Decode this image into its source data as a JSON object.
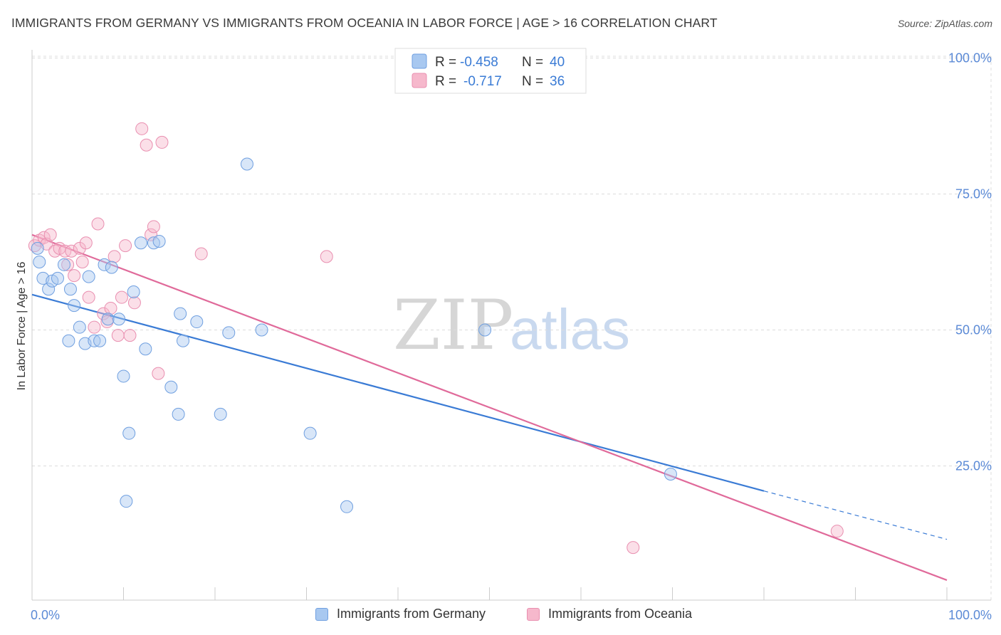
{
  "header": {
    "title": "IMMIGRANTS FROM GERMANY VS IMMIGRANTS FROM OCEANIA IN LABOR FORCE | AGE > 16 CORRELATION CHART",
    "source": "Source: ZipAtlas.com"
  },
  "watermark": {
    "zip": "ZIP",
    "atlas": "atlas"
  },
  "legend": {
    "germany": {
      "r_label": "R =",
      "r_value": "-0.458",
      "n_label": "N =",
      "n_value": "40",
      "color": "#a8c8f0"
    },
    "oceania": {
      "r_label": "R =",
      "r_value": "-0.717",
      "n_label": "N =",
      "n_value": "36",
      "color": "#f6b8cc"
    }
  },
  "bottom_legend": {
    "germany_label": "Immigrants from Germany",
    "oceania_label": "Immigrants from Oceania"
  },
  "chart_data": {
    "type": "scatter",
    "title": "IMMIGRANTS FROM GERMANY VS IMMIGRANTS FROM OCEANIA IN LABOR FORCE | AGE > 16 CORRELATION CHART",
    "xlabel": "",
    "ylabel": "In Labor Force | Age > 16",
    "xlim": [
      0,
      100
    ],
    "ylim": [
      0,
      105
    ],
    "x_tick_labels": [
      "0.0%",
      "100.0%"
    ],
    "y_ticks": [
      25,
      50,
      75,
      100
    ],
    "y_tick_labels": [
      "25.0%",
      "50.0%",
      "75.0%",
      "100.0%"
    ],
    "grid": true,
    "series": [
      {
        "name": "Immigrants from Germany",
        "color": "#a8c8f0",
        "stroke": "#6f9fe0",
        "line_color": "#3a7bd5",
        "points": [
          [
            0.6,
            65.0
          ],
          [
            0.8,
            62.5
          ],
          [
            1.2,
            59.5
          ],
          [
            1.8,
            57.5
          ],
          [
            2.2,
            59.0
          ],
          [
            2.8,
            59.5
          ],
          [
            3.5,
            62.0
          ],
          [
            4.0,
            48.0
          ],
          [
            4.2,
            57.5
          ],
          [
            4.6,
            54.5
          ],
          [
            5.2,
            50.5
          ],
          [
            5.8,
            47.5
          ],
          [
            6.2,
            59.8
          ],
          [
            6.8,
            48.0
          ],
          [
            7.4,
            48.0
          ],
          [
            7.9,
            62.0
          ],
          [
            8.3,
            52.0
          ],
          [
            8.7,
            61.5
          ],
          [
            9.5,
            52.0
          ],
          [
            10.0,
            41.5
          ],
          [
            10.3,
            18.5
          ],
          [
            10.6,
            31.0
          ],
          [
            11.1,
            57.0
          ],
          [
            11.9,
            66.0
          ],
          [
            12.4,
            46.5
          ],
          [
            13.3,
            66.0
          ],
          [
            13.9,
            66.3
          ],
          [
            15.2,
            39.5
          ],
          [
            16.0,
            34.5
          ],
          [
            16.2,
            53.0
          ],
          [
            16.5,
            48.0
          ],
          [
            18.0,
            51.5
          ],
          [
            20.6,
            34.5
          ],
          [
            21.5,
            49.5
          ],
          [
            23.5,
            80.5
          ],
          [
            25.1,
            50.0
          ],
          [
            30.4,
            31.0
          ],
          [
            34.4,
            17.5
          ],
          [
            49.5,
            50.0
          ],
          [
            69.8,
            23.5
          ]
        ],
        "trend": {
          "x0": 0,
          "y0": 56.5,
          "x1": 80,
          "y1": 20.4,
          "dash_x1": 100,
          "dash_y1": 11.5
        }
      },
      {
        "name": "Immigrants from Oceania",
        "color": "#f6b8cc",
        "stroke": "#e98fb0",
        "line_color": "#e06a9a",
        "points": [
          [
            0.3,
            65.5
          ],
          [
            0.8,
            66.5
          ],
          [
            1.3,
            67.0
          ],
          [
            1.6,
            65.8
          ],
          [
            2.0,
            67.5
          ],
          [
            2.5,
            64.5
          ],
          [
            3.0,
            65.0
          ],
          [
            3.6,
            64.5
          ],
          [
            3.9,
            62.0
          ],
          [
            4.3,
            64.5
          ],
          [
            4.6,
            60.0
          ],
          [
            5.2,
            65.0
          ],
          [
            5.5,
            62.5
          ],
          [
            5.9,
            66.0
          ],
          [
            6.2,
            56.0
          ],
          [
            6.8,
            50.5
          ],
          [
            7.2,
            69.5
          ],
          [
            7.8,
            53.0
          ],
          [
            8.2,
            51.5
          ],
          [
            8.6,
            54.0
          ],
          [
            9.0,
            63.5
          ],
          [
            9.4,
            49.0
          ],
          [
            9.8,
            56.0
          ],
          [
            10.2,
            65.5
          ],
          [
            10.7,
            49.0
          ],
          [
            11.2,
            55.0
          ],
          [
            12.0,
            87.0
          ],
          [
            12.5,
            84.0
          ],
          [
            13.0,
            67.5
          ],
          [
            13.3,
            69.0
          ],
          [
            13.8,
            42.0
          ],
          [
            14.2,
            84.5
          ],
          [
            18.5,
            64.0
          ],
          [
            32.2,
            63.5
          ],
          [
            65.7,
            10.0
          ],
          [
            88.0,
            13.0
          ]
        ],
        "trend": {
          "x0": 0,
          "y0": 67.5,
          "x1": 100,
          "y1": 4.0
        }
      }
    ]
  }
}
